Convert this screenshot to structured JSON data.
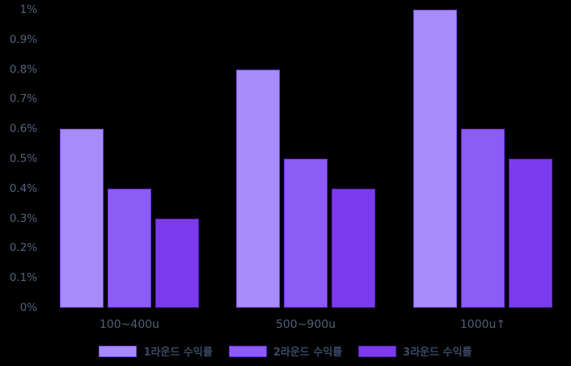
{
  "chart_data": {
    "type": "bar",
    "title": "",
    "xlabel": "",
    "ylabel": "",
    "categories": [
      "100~400u",
      "500~900u",
      "1000u↑"
    ],
    "series": [
      {
        "name": "1라운드 수익률",
        "values": [
          0.6,
          0.8,
          1.0
        ],
        "fill": "#a78bfa",
        "border": "#7c4dde"
      },
      {
        "name": "2라운드 수익률",
        "values": [
          0.4,
          0.5,
          0.6
        ],
        "fill": "#8b5cf6",
        "border": "#6d28d9"
      },
      {
        "name": "3라운드 수익률",
        "values": [
          0.3,
          0.4,
          0.5
        ],
        "fill": "#7c3aed",
        "border": "#5b21b6"
      }
    ],
    "ylim": [
      0,
      1
    ],
    "yticks": [
      {
        "value": 1.0,
        "label": "1%"
      },
      {
        "value": 0.9,
        "label": "0.9%"
      },
      {
        "value": 0.8,
        "label": "0.8%"
      },
      {
        "value": 0.7,
        "label": "0.7%"
      },
      {
        "value": 0.6,
        "label": "0.6%"
      },
      {
        "value": 0.5,
        "label": "0.5%"
      },
      {
        "value": 0.4,
        "label": "0.4%"
      },
      {
        "value": 0.3,
        "label": "0.3%"
      },
      {
        "value": 0.2,
        "label": "0.2%"
      },
      {
        "value": 0.1,
        "label": "0.1%"
      },
      {
        "value": 0.0,
        "label": "0%"
      }
    ],
    "grid": false,
    "legend_position": "bottom",
    "colors": {
      "background": "#000000",
      "tick_text": "#52627e",
      "legend_text": "#3a4a66"
    }
  }
}
